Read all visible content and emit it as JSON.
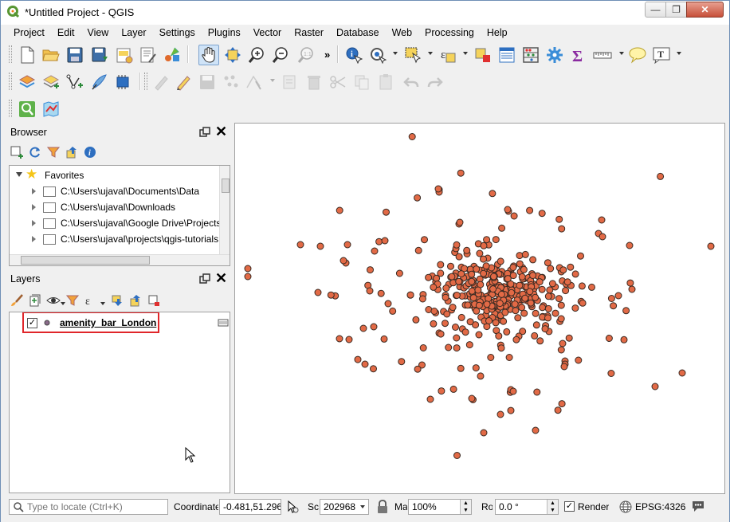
{
  "window": {
    "title": "*Untitled Project - QGIS",
    "min_glyph": "—",
    "max_glyph": "❐",
    "close_glyph": "✕"
  },
  "menus": [
    "Project",
    "Edit",
    "View",
    "Layer",
    "Settings",
    "Plugins",
    "Vector",
    "Raster",
    "Database",
    "Web",
    "Processing",
    "Help"
  ],
  "toolbar_overflow": "»",
  "browser": {
    "title": "Browser",
    "favorites_label": "Favorites",
    "items": [
      "C:\\Users\\ujaval\\Documents\\Data",
      "C:\\Users\\ujaval\\Downloads",
      "C:\\Users\\ujaval\\Google Drive\\Projects",
      "C:\\Users\\ujaval\\projects\\qgis-tutorials"
    ]
  },
  "layers": {
    "title": "Layers",
    "layer_name": "amenity_bar_London"
  },
  "statusbar": {
    "locator_placeholder": "Type to locate (Ctrl+K)",
    "coord_label": "Coordinate",
    "coordinate": "-0.481,51.296",
    "scale_label": "Scale",
    "scale": "202968",
    "magnifier_label": "Magnifier",
    "magnifier": "100%",
    "rotation_label": "Rotation",
    "rotation": "0.0 °",
    "render_label": "Render",
    "crs": "EPSG:4326"
  },
  "colors": {
    "point_fill": "#e26a46",
    "point_stroke": "#3a2a22",
    "highlight_box": "#e0262a"
  }
}
